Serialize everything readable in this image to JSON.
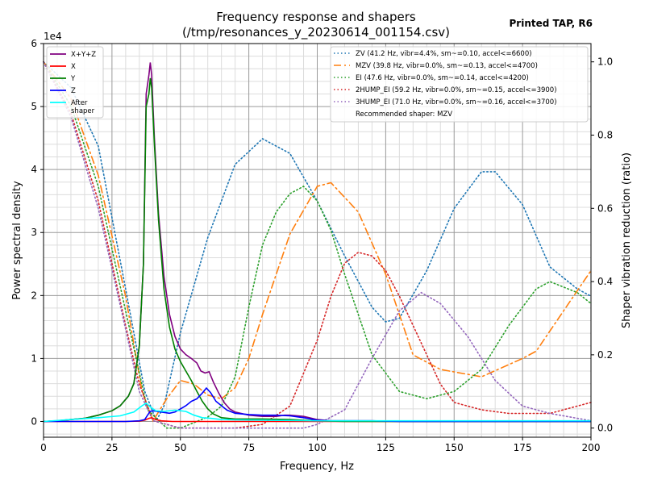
{
  "chart_data": {
    "type": "line",
    "title_line1": "Frequency response and shapers",
    "title_line2": "(/tmp/resonances_y_20230614_001154.csv)",
    "watermark": "Printed TAP, R6",
    "xlabel": "Frequency, Hz",
    "ylabel": "Power spectral density",
    "y2label": "Shaper vibration reduction (ratio)",
    "y_offset_label": "1e4",
    "xlim": [
      0,
      200
    ],
    "ylim": [
      -2500,
      60000
    ],
    "y2lim": [
      -0.025,
      1.05
    ],
    "x_ticks": [
      0,
      25,
      50,
      75,
      100,
      125,
      150,
      175,
      200
    ],
    "x_tick_labels": [
      "0",
      "25",
      "50",
      "75",
      "100",
      "125",
      "150",
      "175",
      "200"
    ],
    "y_ticks": [
      0,
      10000,
      20000,
      30000,
      40000,
      50000,
      60000
    ],
    "y_tick_labels": [
      "0",
      "1",
      "2",
      "3",
      "4",
      "5",
      "6"
    ],
    "y2_ticks": [
      0,
      0.2,
      0.4,
      0.6,
      0.8,
      1.0
    ],
    "y2_tick_labels": [
      "0.0",
      "0.2",
      "0.4",
      "0.6",
      "0.8",
      "1.0"
    ],
    "grid": true,
    "psd_series": [
      {
        "name": "X+Y+Z",
        "color": "#800080",
        "dash": "solid",
        "points": [
          [
            0,
            0
          ],
          [
            5,
            100
          ],
          [
            10,
            300
          ],
          [
            15,
            500
          ],
          [
            20,
            1000
          ],
          [
            25,
            1700
          ],
          [
            28,
            2500
          ],
          [
            31,
            4000
          ],
          [
            33,
            6000
          ],
          [
            35,
            12000
          ],
          [
            36.5,
            25000
          ],
          [
            37.5,
            52000
          ],
          [
            38.5,
            55000
          ],
          [
            39,
            57000
          ],
          [
            39.5,
            55000
          ],
          [
            40.5,
            45000
          ],
          [
            42,
            33000
          ],
          [
            44,
            23000
          ],
          [
            46,
            17000
          ],
          [
            48,
            13500
          ],
          [
            50,
            11500
          ],
          [
            52,
            10600
          ],
          [
            54,
            10000
          ],
          [
            56,
            9300
          ],
          [
            57.5,
            8000
          ],
          [
            59,
            7700
          ],
          [
            60.5,
            7900
          ],
          [
            62,
            6300
          ],
          [
            64,
            4500
          ],
          [
            66,
            3000
          ],
          [
            68,
            2000
          ],
          [
            70,
            1500
          ],
          [
            75,
            1000
          ],
          [
            80,
            800
          ],
          [
            85,
            800
          ],
          [
            88,
            1000
          ],
          [
            90,
            1000
          ],
          [
            95,
            800
          ],
          [
            100,
            300
          ],
          [
            105,
            100
          ],
          [
            120,
            100
          ],
          [
            132,
            0
          ],
          [
            200,
            0
          ]
        ]
      },
      {
        "name": "X",
        "color": "#ff0000",
        "dash": "solid",
        "points": [
          [
            0,
            0
          ],
          [
            30,
            0
          ],
          [
            35,
            50
          ],
          [
            37,
            200
          ],
          [
            38.5,
            500
          ],
          [
            39.5,
            600
          ],
          [
            41,
            300
          ],
          [
            43,
            100
          ],
          [
            47,
            0
          ],
          [
            200,
            0
          ]
        ]
      },
      {
        "name": "Y",
        "color": "#008000",
        "dash": "solid",
        "points": [
          [
            0,
            0
          ],
          [
            5,
            100
          ],
          [
            10,
            300
          ],
          [
            15,
            500
          ],
          [
            20,
            1000
          ],
          [
            25,
            1700
          ],
          [
            28,
            2500
          ],
          [
            31,
            4000
          ],
          [
            33,
            6000
          ],
          [
            35,
            12000
          ],
          [
            36.5,
            25000
          ],
          [
            37.5,
            50000
          ],
          [
            38.5,
            52000
          ],
          [
            39,
            54500
          ],
          [
            39.5,
            53000
          ],
          [
            40.5,
            44000
          ],
          [
            42,
            32000
          ],
          [
            44,
            21000
          ],
          [
            46,
            15000
          ],
          [
            48,
            11500
          ],
          [
            50,
            9500
          ],
          [
            52,
            8000
          ],
          [
            54,
            6500
          ],
          [
            56,
            4800
          ],
          [
            58,
            3200
          ],
          [
            60,
            2000
          ],
          [
            62,
            1200
          ],
          [
            65,
            600
          ],
          [
            70,
            400
          ],
          [
            80,
            400
          ],
          [
            90,
            300
          ],
          [
            100,
            100
          ],
          [
            110,
            0
          ],
          [
            200,
            0
          ]
        ]
      },
      {
        "name": "Z",
        "color": "#0000ff",
        "dash": "solid",
        "points": [
          [
            0,
            0
          ],
          [
            30,
            0
          ],
          [
            35,
            100
          ],
          [
            37,
            300
          ],
          [
            38,
            1000
          ],
          [
            39,
            1600
          ],
          [
            40,
            1700
          ],
          [
            43,
            1500
          ],
          [
            46,
            1300
          ],
          [
            48,
            1500
          ],
          [
            50,
            2000
          ],
          [
            52,
            2500
          ],
          [
            54,
            3200
          ],
          [
            56,
            3600
          ],
          [
            58,
            4500
          ],
          [
            59.5,
            5300
          ],
          [
            61,
            4600
          ],
          [
            63,
            3200
          ],
          [
            65,
            2500
          ],
          [
            67,
            1800
          ],
          [
            70,
            1300
          ],
          [
            75,
            1100
          ],
          [
            80,
            1000
          ],
          [
            85,
            1000
          ],
          [
            90,
            900
          ],
          [
            95,
            600
          ],
          [
            100,
            200
          ],
          [
            105,
            100
          ],
          [
            120,
            100
          ],
          [
            130,
            0
          ],
          [
            200,
            0
          ]
        ]
      },
      {
        "name": "After\nshaper",
        "color": "#00ffff",
        "dash": "solid",
        "points": [
          [
            0,
            0
          ],
          [
            10,
            300
          ],
          [
            20,
            600
          ],
          [
            28,
            900
          ],
          [
            33,
            1500
          ],
          [
            36,
            2500
          ],
          [
            37.5,
            2900
          ],
          [
            39,
            2300
          ],
          [
            41,
            1700
          ],
          [
            44,
            1600
          ],
          [
            48,
            1800
          ],
          [
            52,
            1600
          ],
          [
            55,
            1000
          ],
          [
            58,
            600
          ],
          [
            61,
            500
          ],
          [
            65,
            300
          ],
          [
            70,
            250
          ],
          [
            80,
            200
          ],
          [
            90,
            150
          ],
          [
            100,
            100
          ],
          [
            200,
            100
          ]
        ]
      }
    ],
    "shaper_series": [
      {
        "name": "ZV (41.2 Hz, vibr=4.4%, sm~=0.10, accel<=6600)",
        "color": "#1f77b4",
        "dash": "dotted",
        "points": [
          [
            0,
            1.0
          ],
          [
            10,
            0.93
          ],
          [
            20,
            0.77
          ],
          [
            30,
            0.38
          ],
          [
            37,
            0.1
          ],
          [
            41.2,
            0.02
          ],
          [
            44,
            0.06
          ],
          [
            50,
            0.26
          ],
          [
            60,
            0.52
          ],
          [
            70,
            0.72
          ],
          [
            80,
            0.79
          ],
          [
            90,
            0.75
          ],
          [
            100,
            0.62
          ],
          [
            110,
            0.47
          ],
          [
            120,
            0.33
          ],
          [
            125,
            0.29
          ],
          [
            130,
            0.3
          ],
          [
            140,
            0.43
          ],
          [
            150,
            0.6
          ],
          [
            160,
            0.7
          ],
          [
            165,
            0.7
          ],
          [
            175,
            0.61
          ],
          [
            185,
            0.44
          ],
          [
            195,
            0.38
          ],
          [
            200,
            0.36
          ]
        ]
      },
      {
        "name": "MZV (39.8 Hz, vibr=0.0%, sm~=0.13, accel<=4700)",
        "color": "#ff7f0e",
        "dash": "dashdot",
        "points": [
          [
            0,
            1.0
          ],
          [
            10,
            0.9
          ],
          [
            20,
            0.69
          ],
          [
            30,
            0.36
          ],
          [
            36,
            0.1
          ],
          [
            40,
            0.02
          ],
          [
            45,
            0.08
          ],
          [
            50,
            0.13
          ],
          [
            55,
            0.12
          ],
          [
            60,
            0.09
          ],
          [
            65,
            0.08
          ],
          [
            70,
            0.11
          ],
          [
            75,
            0.19
          ],
          [
            80,
            0.31
          ],
          [
            90,
            0.53
          ],
          [
            100,
            0.66
          ],
          [
            105,
            0.67
          ],
          [
            115,
            0.59
          ],
          [
            125,
            0.42
          ],
          [
            135,
            0.2
          ],
          [
            145,
            0.16
          ],
          [
            160,
            0.14
          ],
          [
            175,
            0.19
          ],
          [
            180,
            0.21
          ],
          [
            190,
            0.32
          ],
          [
            200,
            0.43
          ]
        ]
      },
      {
        "name": "EI (47.6 Hz, vibr=0.0%, sm~=0.14, accel<=4200)",
        "color": "#2ca02c",
        "dash": "dotted",
        "points": [
          [
            0,
            1.0
          ],
          [
            10,
            0.88
          ],
          [
            20,
            0.66
          ],
          [
            30,
            0.32
          ],
          [
            38,
            0.05
          ],
          [
            45,
            0.0
          ],
          [
            50,
            0.0
          ],
          [
            60,
            0.03
          ],
          [
            65,
            0.06
          ],
          [
            70,
            0.14
          ],
          [
            75,
            0.33
          ],
          [
            80,
            0.5
          ],
          [
            85,
            0.59
          ],
          [
            90,
            0.64
          ],
          [
            95,
            0.66
          ],
          [
            100,
            0.62
          ],
          [
            105,
            0.54
          ],
          [
            110,
            0.42
          ],
          [
            120,
            0.2
          ],
          [
            130,
            0.1
          ],
          [
            140,
            0.08
          ],
          [
            150,
            0.1
          ],
          [
            160,
            0.16
          ],
          [
            170,
            0.28
          ],
          [
            180,
            0.38
          ],
          [
            185,
            0.4
          ],
          [
            195,
            0.37
          ],
          [
            200,
            0.34
          ]
        ]
      },
      {
        "name": "2HUMP_EI (59.2 Hz, vibr=0.0%, sm~=0.15, accel<=3900)",
        "color": "#d62728",
        "dash": "dotted",
        "points": [
          [
            0,
            1.0
          ],
          [
            10,
            0.86
          ],
          [
            20,
            0.62
          ],
          [
            30,
            0.28
          ],
          [
            35,
            0.12
          ],
          [
            40,
            0.02
          ],
          [
            50,
            0.0
          ],
          [
            70,
            0.0
          ],
          [
            80,
            0.01
          ],
          [
            90,
            0.06
          ],
          [
            100,
            0.24
          ],
          [
            105,
            0.36
          ],
          [
            110,
            0.45
          ],
          [
            115,
            0.48
          ],
          [
            120,
            0.47
          ],
          [
            125,
            0.43
          ],
          [
            130,
            0.36
          ],
          [
            140,
            0.2
          ],
          [
            145,
            0.12
          ],
          [
            150,
            0.07
          ],
          [
            160,
            0.05
          ],
          [
            170,
            0.04
          ],
          [
            185,
            0.04
          ],
          [
            195,
            0.06
          ],
          [
            200,
            0.07
          ]
        ]
      },
      {
        "name": "3HUMP_EI (71.0 Hz, vibr=0.0%, sm~=0.16, accel<=3700)",
        "color": "#9467bd",
        "dash": "dotted",
        "points": [
          [
            0,
            1.0
          ],
          [
            10,
            0.85
          ],
          [
            20,
            0.6
          ],
          [
            30,
            0.27
          ],
          [
            35,
            0.1
          ],
          [
            40,
            0.02
          ],
          [
            50,
            0.0
          ],
          [
            95,
            0.0
          ],
          [
            100,
            0.01
          ],
          [
            110,
            0.05
          ],
          [
            120,
            0.19
          ],
          [
            130,
            0.32
          ],
          [
            138,
            0.37
          ],
          [
            145,
            0.34
          ],
          [
            155,
            0.25
          ],
          [
            165,
            0.13
          ],
          [
            175,
            0.06
          ],
          [
            185,
            0.04
          ],
          [
            200,
            0.02
          ]
        ]
      }
    ],
    "recommended_label": "Recommended shaper: MZV"
  }
}
